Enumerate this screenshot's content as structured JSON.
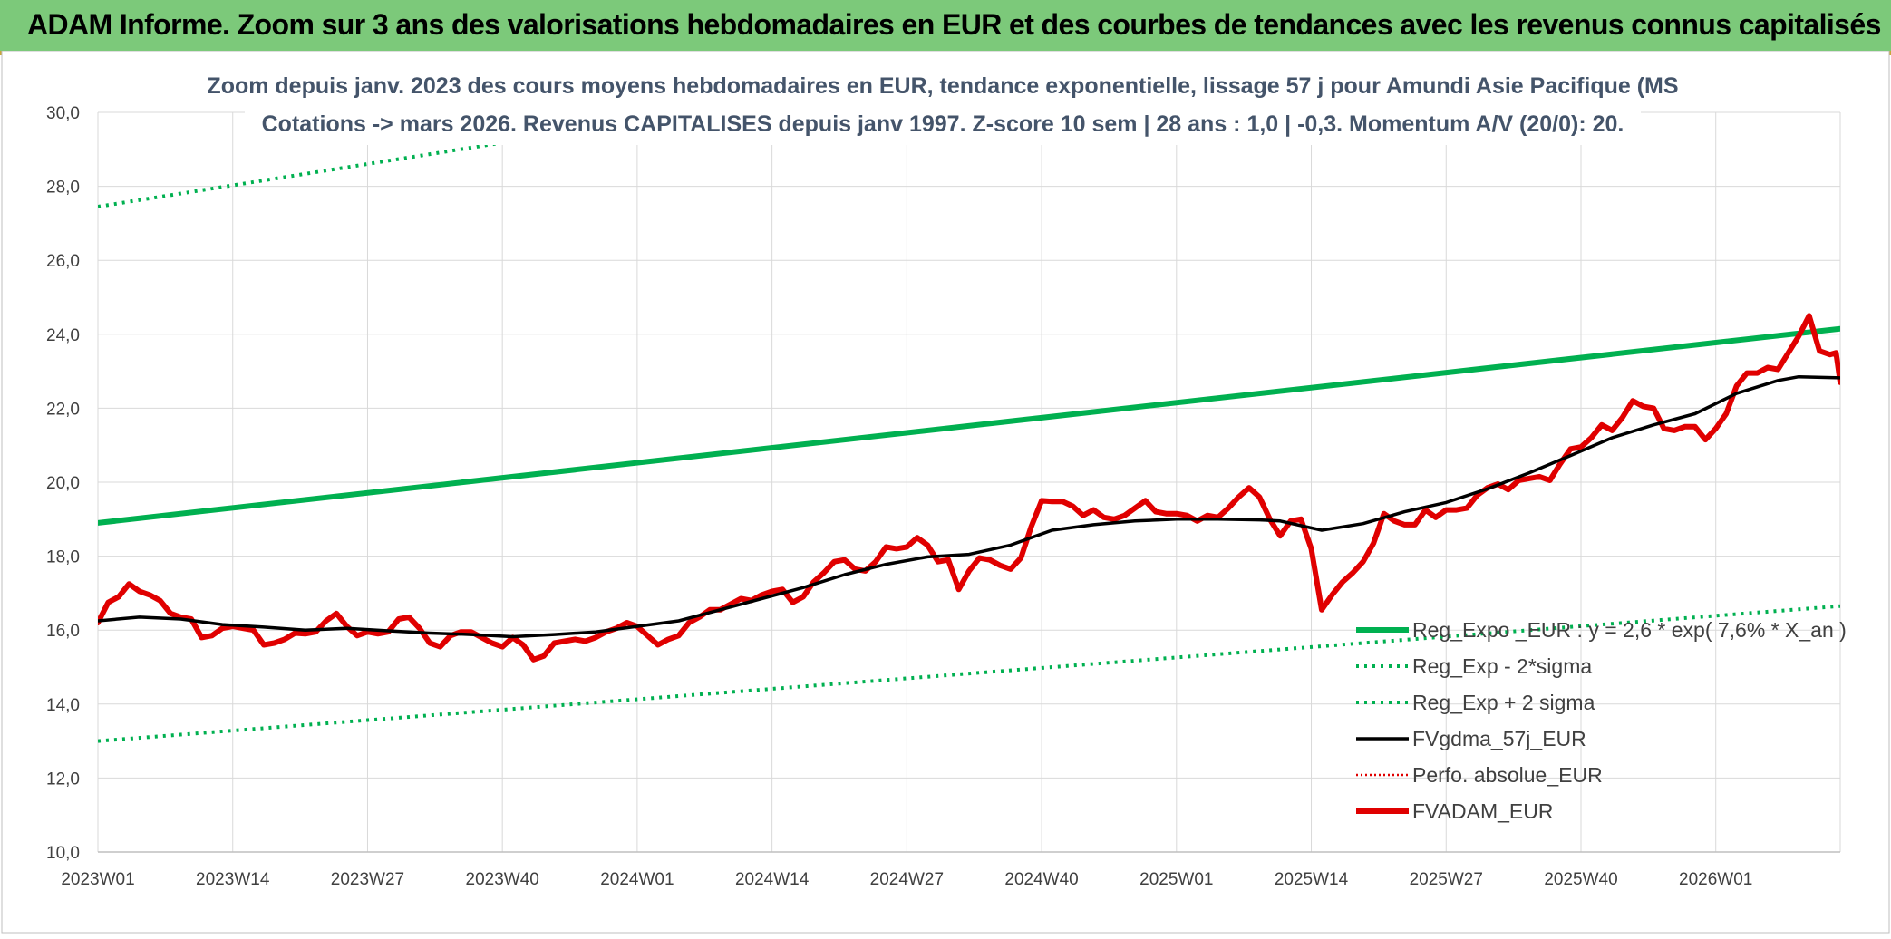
{
  "banner": {
    "title": "ADAM Informe. Zoom sur 3 ans des valorisations hebdomadaires en EUR et des courbes de tendances avec les revenus connus capitalisés"
  },
  "colors": {
    "banner_bg": "#7cc97a",
    "reg_expo": "#00b050",
    "fvadam": "#e00000",
    "fvgdma": "#000000",
    "perfo": "#e00000",
    "title_text": "#44546a",
    "axis_text": "#404040",
    "grid": "#d9d9d9"
  },
  "chart_data": {
    "type": "line",
    "title_line1": "Zoom depuis janv. 2023 des cours moyens hebdomadaires en EUR, tendance exponentielle, lissage 57 j pour Amundi Asie Pacifique (MS",
    "title_line2": "Cotations -> mars 2026. Revenus CAPITALISES depuis janv 1997. Z-score 10 sem | 28 ans : 1,0 | -0,3. Momentum A/V (20/0): 20.",
    "ylim": [
      10,
      30
    ],
    "yticks": [
      "10,0",
      "12,0",
      "14,0",
      "16,0",
      "18,0",
      "20,0",
      "22,0",
      "24,0",
      "26,0",
      "28,0",
      "30,0"
    ],
    "xlim": [
      0,
      168
    ],
    "xticks": [
      {
        "week": 0,
        "label": "2023W01"
      },
      {
        "week": 13,
        "label": "2023W14"
      },
      {
        "week": 26,
        "label": "2023W27"
      },
      {
        "week": 39,
        "label": "2023W40"
      },
      {
        "week": 52,
        "label": "2024W01"
      },
      {
        "week": 65,
        "label": "2024W14"
      },
      {
        "week": 78,
        "label": "2024W27"
      },
      {
        "week": 91,
        "label": "2024W40"
      },
      {
        "week": 104,
        "label": "2025W01"
      },
      {
        "week": 117,
        "label": "2025W14"
      },
      {
        "week": 130,
        "label": "2025W27"
      },
      {
        "week": 143,
        "label": "2025W40"
      },
      {
        "week": 156,
        "label": "2026W01"
      }
    ],
    "grid": true,
    "legend_position": "bottom-right",
    "series": [
      {
        "name": "Reg_Expo _EUR : y = 2,6 * exp( 7,6% * X_an )",
        "key": "reg_expo",
        "style": "solid-thick",
        "color": "#00b050",
        "points": [
          [
            0,
            18.9
          ],
          [
            168,
            24.15
          ]
        ]
      },
      {
        "name": "Reg_Exp - 2*sigma",
        "key": "reg_minus",
        "style": "dotted",
        "color": "#00b050",
        "points": [
          [
            0,
            13.0
          ],
          [
            168,
            16.65
          ]
        ]
      },
      {
        "name": "Reg_Exp + 2 sigma",
        "key": "reg_plus",
        "style": "dotted",
        "color": "#00b050",
        "points": [
          [
            0,
            27.45
          ],
          [
            168,
            34.9
          ]
        ]
      },
      {
        "name": "FVgdma_57j_EUR",
        "key": "fvgdma",
        "style": "solid",
        "color": "#000000",
        "points": [
          [
            0,
            16.25
          ],
          [
            4,
            16.35
          ],
          [
            8,
            16.3
          ],
          [
            12,
            16.15
          ],
          [
            16,
            16.08
          ],
          [
            20,
            16.0
          ],
          [
            24,
            16.05
          ],
          [
            28,
            15.98
          ],
          [
            32,
            15.92
          ],
          [
            36,
            15.88
          ],
          [
            40,
            15.82
          ],
          [
            44,
            15.88
          ],
          [
            48,
            15.95
          ],
          [
            52,
            16.1
          ],
          [
            56,
            16.25
          ],
          [
            60,
            16.55
          ],
          [
            64,
            16.85
          ],
          [
            68,
            17.15
          ],
          [
            72,
            17.5
          ],
          [
            76,
            17.78
          ],
          [
            80,
            17.98
          ],
          [
            84,
            18.05
          ],
          [
            88,
            18.3
          ],
          [
            92,
            18.7
          ],
          [
            96,
            18.85
          ],
          [
            100,
            18.95
          ],
          [
            104,
            19.0
          ],
          [
            108,
            19.0
          ],
          [
            112,
            18.98
          ],
          [
            114,
            18.95
          ],
          [
            118,
            18.7
          ],
          [
            122,
            18.88
          ],
          [
            126,
            19.2
          ],
          [
            130,
            19.45
          ],
          [
            134,
            19.82
          ],
          [
            138,
            20.25
          ],
          [
            142,
            20.72
          ],
          [
            146,
            21.2
          ],
          [
            150,
            21.55
          ],
          [
            154,
            21.85
          ],
          [
            158,
            22.4
          ],
          [
            162,
            22.75
          ],
          [
            164,
            22.85
          ],
          [
            168,
            22.82
          ]
        ]
      },
      {
        "name": "Perfo. absolue_EUR",
        "key": "perfo",
        "style": "dotted-thin",
        "color": "#e00000",
        "points": []
      },
      {
        "name": "FVADAM_EUR",
        "key": "fvadam",
        "style": "solid-thick",
        "color": "#e00000",
        "points": [
          [
            0,
            16.2
          ],
          [
            1,
            16.75
          ],
          [
            2,
            16.9
          ],
          [
            3,
            17.25
          ],
          [
            4,
            17.05
          ],
          [
            5,
            16.95
          ],
          [
            6,
            16.8
          ],
          [
            7,
            16.45
          ],
          [
            8,
            16.35
          ],
          [
            9,
            16.3
          ],
          [
            10,
            15.8
          ],
          [
            11,
            15.85
          ],
          [
            12,
            16.05
          ],
          [
            13,
            16.1
          ],
          [
            14,
            16.05
          ],
          [
            15,
            16.0
          ],
          [
            16,
            15.6
          ],
          [
            17,
            15.65
          ],
          [
            18,
            15.75
          ],
          [
            19,
            15.92
          ],
          [
            20,
            15.9
          ],
          [
            21,
            15.95
          ],
          [
            22,
            16.25
          ],
          [
            23,
            16.45
          ],
          [
            24,
            16.1
          ],
          [
            25,
            15.85
          ],
          [
            26,
            15.95
          ],
          [
            27,
            15.9
          ],
          [
            28,
            15.95
          ],
          [
            29,
            16.3
          ],
          [
            30,
            16.35
          ],
          [
            31,
            16.05
          ],
          [
            32,
            15.65
          ],
          [
            33,
            15.55
          ],
          [
            34,
            15.85
          ],
          [
            35,
            15.95
          ],
          [
            36,
            15.95
          ],
          [
            37,
            15.8
          ],
          [
            38,
            15.65
          ],
          [
            39,
            15.55
          ],
          [
            40,
            15.8
          ],
          [
            41,
            15.6
          ],
          [
            42,
            15.2
          ],
          [
            43,
            15.3
          ],
          [
            44,
            15.65
          ],
          [
            45,
            15.7
          ],
          [
            46,
            15.75
          ],
          [
            47,
            15.7
          ],
          [
            48,
            15.8
          ],
          [
            49,
            15.95
          ],
          [
            50,
            16.05
          ],
          [
            51,
            16.2
          ],
          [
            52,
            16.1
          ],
          [
            53,
            15.85
          ],
          [
            54,
            15.6
          ],
          [
            55,
            15.75
          ],
          [
            56,
            15.85
          ],
          [
            57,
            16.2
          ],
          [
            58,
            16.35
          ],
          [
            59,
            16.55
          ],
          [
            60,
            16.55
          ],
          [
            61,
            16.7
          ],
          [
            62,
            16.85
          ],
          [
            63,
            16.8
          ],
          [
            64,
            16.95
          ],
          [
            65,
            17.05
          ],
          [
            66,
            17.1
          ],
          [
            67,
            16.75
          ],
          [
            68,
            16.9
          ],
          [
            69,
            17.3
          ],
          [
            70,
            17.55
          ],
          [
            71,
            17.85
          ],
          [
            72,
            17.9
          ],
          [
            73,
            17.65
          ],
          [
            74,
            17.6
          ],
          [
            75,
            17.85
          ],
          [
            76,
            18.25
          ],
          [
            77,
            18.2
          ],
          [
            78,
            18.25
          ],
          [
            79,
            18.5
          ],
          [
            80,
            18.3
          ],
          [
            81,
            17.85
          ],
          [
            82,
            17.9
          ],
          [
            83,
            17.1
          ],
          [
            84,
            17.6
          ],
          [
            85,
            17.95
          ],
          [
            86,
            17.9
          ],
          [
            87,
            17.75
          ],
          [
            88,
            17.65
          ],
          [
            89,
            17.95
          ],
          [
            90,
            18.8
          ],
          [
            91,
            19.5
          ],
          [
            92,
            19.48
          ],
          [
            93,
            19.48
          ],
          [
            94,
            19.35
          ],
          [
            95,
            19.1
          ],
          [
            96,
            19.25
          ],
          [
            97,
            19.05
          ],
          [
            98,
            19.0
          ],
          [
            99,
            19.1
          ],
          [
            100,
            19.3
          ],
          [
            101,
            19.5
          ],
          [
            102,
            19.2
          ],
          [
            103,
            19.15
          ],
          [
            104,
            19.15
          ],
          [
            105,
            19.1
          ],
          [
            106,
            18.95
          ],
          [
            107,
            19.1
          ],
          [
            108,
            19.05
          ],
          [
            109,
            19.3
          ],
          [
            110,
            19.6
          ],
          [
            111,
            19.85
          ],
          [
            112,
            19.6
          ],
          [
            113,
            19.0
          ],
          [
            114,
            18.55
          ],
          [
            115,
            18.95
          ],
          [
            116,
            19.0
          ],
          [
            117,
            18.2
          ],
          [
            118,
            16.55
          ],
          [
            119,
            16.95
          ],
          [
            120,
            17.3
          ],
          [
            121,
            17.55
          ],
          [
            122,
            17.85
          ],
          [
            123,
            18.35
          ],
          [
            124,
            19.15
          ],
          [
            125,
            18.95
          ],
          [
            126,
            18.85
          ],
          [
            127,
            18.85
          ],
          [
            128,
            19.25
          ],
          [
            129,
            19.05
          ],
          [
            130,
            19.25
          ],
          [
            131,
            19.25
          ],
          [
            132,
            19.3
          ],
          [
            133,
            19.65
          ],
          [
            134,
            19.85
          ],
          [
            135,
            19.95
          ],
          [
            136,
            19.8
          ],
          [
            137,
            20.05
          ],
          [
            138,
            20.1
          ],
          [
            139,
            20.15
          ],
          [
            140,
            20.05
          ],
          [
            141,
            20.5
          ],
          [
            142,
            20.9
          ],
          [
            143,
            20.95
          ],
          [
            144,
            21.2
          ],
          [
            145,
            21.55
          ],
          [
            146,
            21.4
          ],
          [
            147,
            21.75
          ],
          [
            148,
            22.2
          ],
          [
            149,
            22.05
          ],
          [
            150,
            22.0
          ],
          [
            151,
            21.45
          ],
          [
            152,
            21.4
          ],
          [
            153,
            21.5
          ],
          [
            154,
            21.5
          ],
          [
            155,
            21.15
          ],
          [
            156,
            21.45
          ],
          [
            157,
            21.85
          ],
          [
            158,
            22.6
          ],
          [
            159,
            22.95
          ],
          [
            160,
            22.95
          ],
          [
            161,
            23.1
          ],
          [
            162,
            23.05
          ],
          [
            163,
            23.5
          ],
          [
            164,
            23.95
          ],
          [
            165,
            24.5
          ],
          [
            166,
            23.55
          ],
          [
            167,
            23.45
          ],
          [
            167.6,
            23.5
          ],
          [
            168,
            22.7
          ]
        ]
      }
    ]
  }
}
